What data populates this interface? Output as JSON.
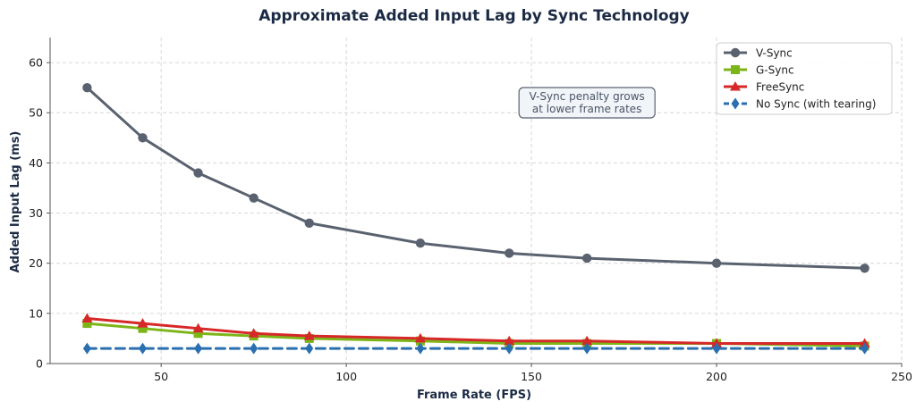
{
  "chart_data": {
    "type": "line",
    "title": "Approximate Added Input Lag by Sync Technology",
    "xlabel": "Frame Rate (FPS)",
    "ylabel": "Added Input Lag (ms)",
    "xlim": [
      20,
      250
    ],
    "ylim": [
      0,
      65
    ],
    "xticks": [
      50,
      100,
      150,
      200,
      250
    ],
    "yticks": [
      0,
      10,
      20,
      30,
      40,
      50,
      60
    ],
    "grid": true,
    "legend_position": "top-right",
    "x": [
      30,
      45,
      60,
      75,
      90,
      120,
      144,
      165,
      200,
      240
    ],
    "series": [
      {
        "name": "V-Sync",
        "values": [
          55,
          45,
          38,
          33,
          28,
          24,
          22,
          21,
          20,
          19
        ],
        "color": "#5a6270",
        "marker": "circle",
        "style": "solid"
      },
      {
        "name": "G-Sync",
        "values": [
          8,
          7,
          6,
          5.5,
          5,
          4.5,
          4,
          4,
          4,
          3.5
        ],
        "color": "#7cb518",
        "marker": "square",
        "style": "solid"
      },
      {
        "name": "FreeSync",
        "values": [
          9,
          8,
          7,
          6,
          5.5,
          5,
          4.5,
          4.5,
          4,
          4
        ],
        "color": "#d62828",
        "marker": "triangle",
        "style": "solid"
      },
      {
        "name": "No Sync (with tearing)",
        "values": [
          3,
          3,
          3,
          3,
          3,
          3,
          3,
          3,
          3,
          3
        ],
        "color": "#2a6fb0",
        "marker": "diamond",
        "style": "dashed"
      }
    ],
    "annotations": [
      {
        "lines": [
          "V-Sync penalty grows",
          "at lower frame rates"
        ],
        "x": 165,
        "y": 52
      }
    ]
  }
}
